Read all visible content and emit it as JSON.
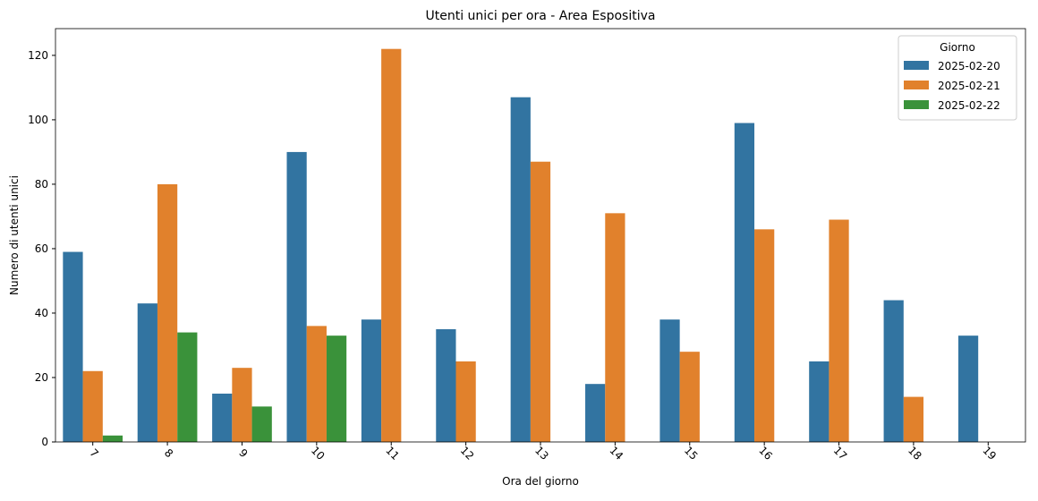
{
  "chart_data": {
    "type": "bar",
    "title": "Utenti unici per ora - Area Espositiva",
    "x_label": "Ora del giorno",
    "y_label": "Numero di utenti unici",
    "legend_title": "Giorno",
    "legend_position": "upper right",
    "categories": [
      "7",
      "8",
      "9",
      "10",
      "11",
      "12",
      "13",
      "14",
      "15",
      "16",
      "17",
      "18",
      "19"
    ],
    "series": [
      {
        "name": "2025-02-20",
        "color": "#3274a1",
        "values": [
          59,
          43,
          15,
          90,
          38,
          35,
          107,
          18,
          38,
          99,
          25,
          44,
          33
        ]
      },
      {
        "name": "2025-02-21",
        "color": "#e1812c",
        "values": [
          22,
          80,
          23,
          36,
          122,
          25,
          87,
          71,
          28,
          66,
          69,
          14,
          null
        ]
      },
      {
        "name": "2025-02-22",
        "color": "#3a923a",
        "values": [
          2,
          34,
          11,
          33,
          null,
          null,
          null,
          null,
          null,
          null,
          null,
          null,
          null
        ]
      }
    ],
    "ylim": [
      0,
      128.3
    ],
    "yticks": [
      0,
      20,
      40,
      60,
      80,
      100,
      120
    ],
    "grid": false
  }
}
